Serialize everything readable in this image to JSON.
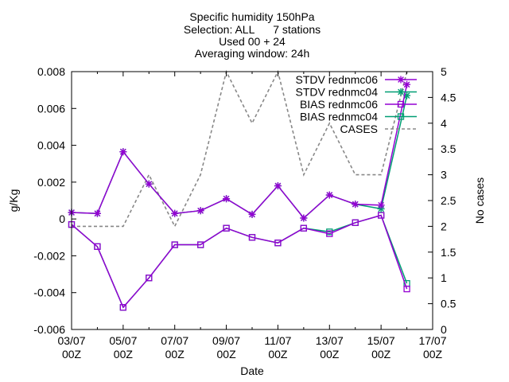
{
  "chart_data": {
    "type": "line",
    "title_lines": [
      "Specific humidity 150hPa",
      "Selection: ALL      7 stations",
      "Used 00 + 24",
      "Averaging window: 24h"
    ],
    "xlabel": "Date",
    "ylabel": "g/Kg",
    "y2label": "No cases",
    "xlim": [
      "2022-07-03 00:00",
      "2022-07-17 00:00"
    ],
    "ylim": [
      -0.006,
      0.008
    ],
    "y2lim": [
      0,
      5
    ],
    "x_ticks": [
      {
        "x": "2022-07-03 00:00",
        "line1": "03/07",
        "line2": "00Z"
      },
      {
        "x": "2022-07-05 00:00",
        "line1": "05/07",
        "line2": "00Z"
      },
      {
        "x": "2022-07-07 00:00",
        "line1": "07/07",
        "line2": "00Z"
      },
      {
        "x": "2022-07-09 00:00",
        "line1": "09/07",
        "line2": "00Z"
      },
      {
        "x": "2022-07-11 00:00",
        "line1": "11/07",
        "line2": "00Z"
      },
      {
        "x": "2022-07-13 00:00",
        "line1": "13/07",
        "line2": "00Z"
      },
      {
        "x": "2022-07-15 00:00",
        "line1": "15/07",
        "line2": "00Z"
      },
      {
        "x": "2022-07-17 00:00",
        "line1": "17/07",
        "line2": "00Z"
      }
    ],
    "y_ticks": [
      {
        "v": -0.006,
        "label": "-0.006"
      },
      {
        "v": -0.004,
        "label": "-0.004"
      },
      {
        "v": -0.002,
        "label": "-0.002"
      },
      {
        "v": 0,
        "label": "0"
      },
      {
        "v": 0.002,
        "label": "0.002"
      },
      {
        "v": 0.004,
        "label": "0.004"
      },
      {
        "v": 0.006,
        "label": "0.006"
      },
      {
        "v": 0.008,
        "label": "0.008"
      }
    ],
    "y2_ticks": [
      {
        "v": 0,
        "label": "0"
      },
      {
        "v": 0.5,
        "label": "0.5"
      },
      {
        "v": 1,
        "label": "1"
      },
      {
        "v": 1.5,
        "label": "1.5"
      },
      {
        "v": 2,
        "label": "2"
      },
      {
        "v": 2.5,
        "label": "2.5"
      },
      {
        "v": 3,
        "label": "3"
      },
      {
        "v": 3.5,
        "label": "3.5"
      },
      {
        "v": 4,
        "label": "4"
      },
      {
        "v": 4.5,
        "label": "4.5"
      },
      {
        "v": 5,
        "label": "5"
      }
    ],
    "grid": false,
    "legend_position": "top-right",
    "series": [
      {
        "name": "STDV rednmc06",
        "color": "#9400d3",
        "marker": "star",
        "axis": "y",
        "x": [
          "2022-07-03 00:00",
          "2022-07-04 00:00",
          "2022-07-05 00:00",
          "2022-07-06 00:00",
          "2022-07-07 00:00",
          "2022-07-08 00:00",
          "2022-07-09 00:00",
          "2022-07-10 00:00",
          "2022-07-11 00:00",
          "2022-07-12 00:00",
          "2022-07-13 00:00",
          "2022-07-14 00:00",
          "2022-07-15 00:00",
          "2022-07-16 00:00"
        ],
        "values": [
          0.00035,
          0.0003,
          0.00365,
          0.0019,
          0.0003,
          0.00045,
          0.0011,
          0.00025,
          0.0018,
          5e-05,
          0.0013,
          0.0008,
          0.00075,
          0.0073
        ]
      },
      {
        "name": "STDV rednmc04",
        "color": "#009e73",
        "marker": "star",
        "axis": "y",
        "x": [
          "2022-07-03 00:00",
          "2022-07-04 00:00",
          "2022-07-05 00:00",
          "2022-07-06 00:00",
          "2022-07-07 00:00",
          "2022-07-08 00:00",
          "2022-07-09 00:00",
          "2022-07-10 00:00",
          "2022-07-11 00:00",
          "2022-07-12 00:00",
          "2022-07-13 00:00",
          "2022-07-14 00:00",
          "2022-07-15 00:00",
          "2022-07-16 00:00"
        ],
        "values": [
          0.00035,
          0.0003,
          0.00365,
          0.0019,
          0.0003,
          0.00045,
          0.0011,
          0.00025,
          0.0018,
          5e-05,
          0.0013,
          0.0008,
          0.00055,
          0.0067
        ]
      },
      {
        "name": "BIAS rednmc06",
        "color": "#9400d3",
        "marker": "square",
        "axis": "y",
        "x": [
          "2022-07-03 00:00",
          "2022-07-04 00:00",
          "2022-07-05 00:00",
          "2022-07-06 00:00",
          "2022-07-07 00:00",
          "2022-07-08 00:00",
          "2022-07-09 00:00",
          "2022-07-10 00:00",
          "2022-07-11 00:00",
          "2022-07-12 00:00",
          "2022-07-13 00:00",
          "2022-07-14 00:00",
          "2022-07-15 00:00",
          "2022-07-16 00:00"
        ],
        "values": [
          -0.0003,
          -0.0015,
          -0.0048,
          -0.0032,
          -0.0014,
          -0.0014,
          -0.0005,
          -0.001,
          -0.0013,
          -0.0005,
          -0.0008,
          -0.0002,
          0.0002,
          -0.0038
        ]
      },
      {
        "name": "BIAS rednmc04",
        "color": "#009e73",
        "marker": "square",
        "axis": "y",
        "x": [
          "2022-07-03 00:00",
          "2022-07-04 00:00",
          "2022-07-05 00:00",
          "2022-07-06 00:00",
          "2022-07-07 00:00",
          "2022-07-08 00:00",
          "2022-07-09 00:00",
          "2022-07-10 00:00",
          "2022-07-11 00:00",
          "2022-07-12 00:00",
          "2022-07-13 00:00",
          "2022-07-14 00:00",
          "2022-07-15 00:00",
          "2022-07-16 00:00"
        ],
        "values": [
          -0.0003,
          -0.0015,
          -0.0048,
          -0.0032,
          -0.0014,
          -0.0014,
          -0.0005,
          -0.001,
          -0.0013,
          -0.0005,
          -0.0007,
          -0.0002,
          0.0002,
          -0.0035
        ]
      },
      {
        "name": "CASES",
        "color": "#888888",
        "marker": "none",
        "dashed": true,
        "axis": "y2",
        "x": [
          "2022-07-03 00:00",
          "2022-07-04 00:00",
          "2022-07-05 00:00",
          "2022-07-06 00:00",
          "2022-07-07 00:00",
          "2022-07-08 00:00",
          "2022-07-09 00:00",
          "2022-07-10 00:00",
          "2022-07-11 00:00",
          "2022-07-12 00:00",
          "2022-07-13 00:00",
          "2022-07-14 00:00",
          "2022-07-15 00:00",
          "2022-07-16 00:00"
        ],
        "values": [
          2,
          2,
          2,
          3,
          2,
          3,
          5,
          4,
          5,
          3,
          4,
          3,
          3,
          5
        ]
      }
    ]
  }
}
